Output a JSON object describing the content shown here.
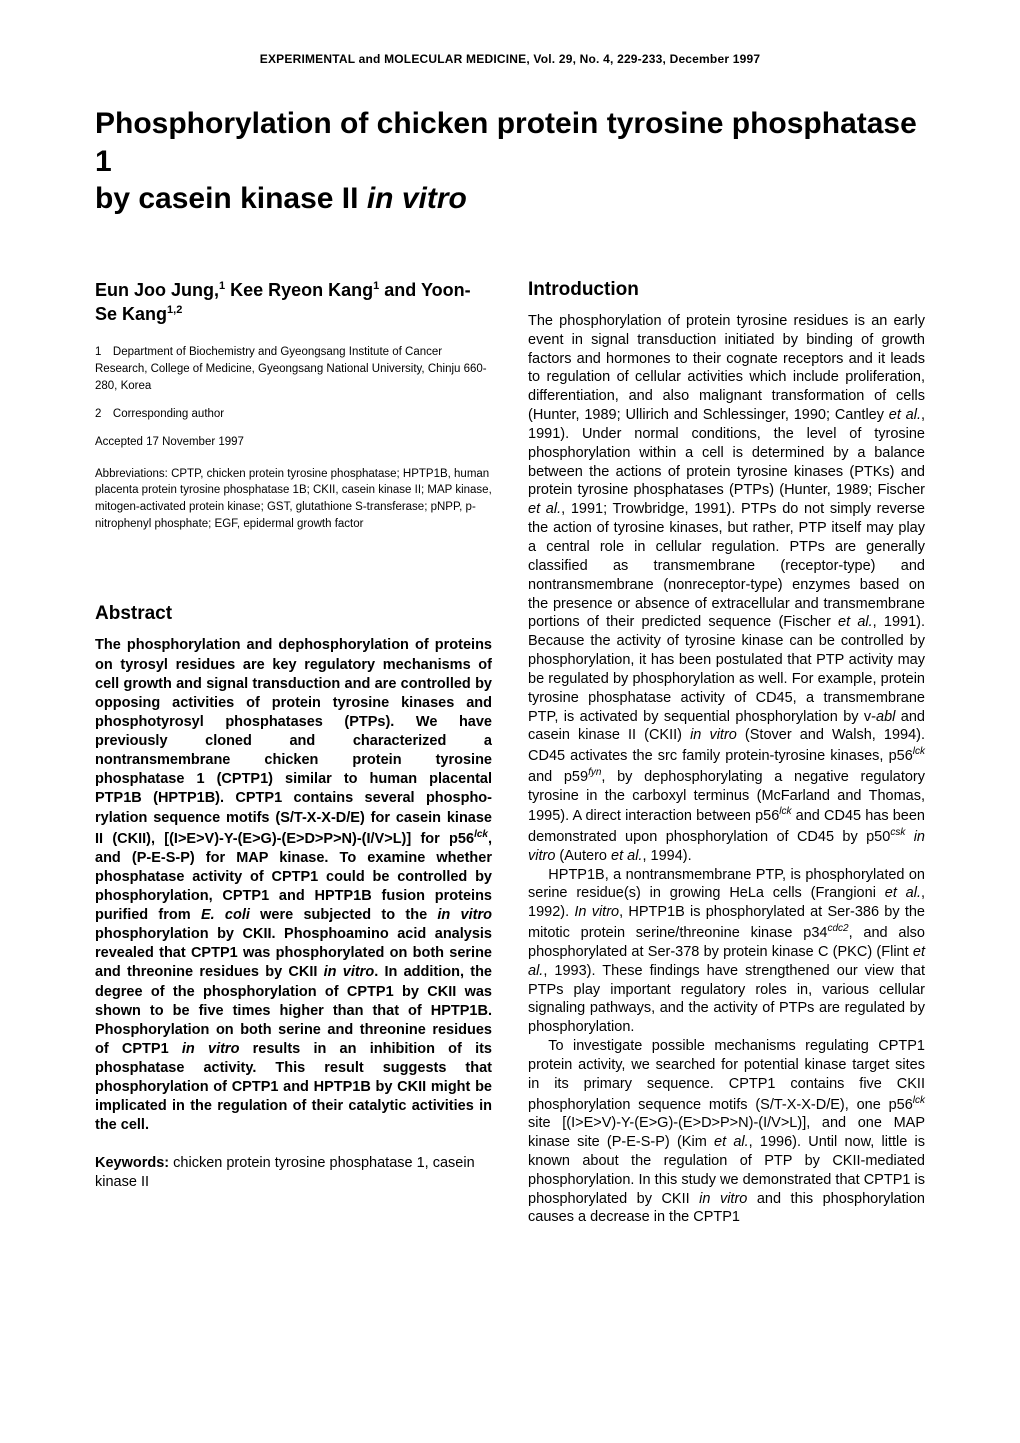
{
  "running_head": "EXPERIMENTAL and MOLECULAR MEDICINE, Vol. 29, No. 4, 229-233, December 1997",
  "title_line1": "Phosphorylation of chicken protein tyrosine phosphatase 1",
  "title_line2": "by casein kinase II ",
  "title_italic": "in vitro",
  "authors_html": "Eun Joo Jung,<sup>1</sup> Kee Ryeon Kang<sup>1</sup> and Yoon-Se Kang<sup>1,2</sup>",
  "affil_1": "1 Department of Biochemistry and Gyeongsang Institute of Cancer Research, College of Medicine, Gyeongsang National University, Chinju 660-280, Korea",
  "affil_2": "2 Corresponding author",
  "accepted": "Accepted 17 November 1997",
  "abbrev_label": "Abbreviations:",
  "abbrev_text": " CPTP, chicken protein tyrosine phosphatase; HPTP1B, human placenta protein tyrosine phosphatase 1B; CKII, casein kinase II; MAP kinase, mitogen-activated protein kinase; GST, glutathione S-transferase; pNPP, p-nitrophenyl phosphate; EGF, epidermal growth factor",
  "abstract_head": "Abstract",
  "abstract_body_html": "The phosphorylation and dephosphorylation of proteins on tyrosyl residues are key regulatory mechanisms of cell growth and signal transduction and are controlled by opposing activities of protein tyrosine kinases and phosphotyrosyl phosphatases (PTPs). We have previously cloned and characterized a nontransmembrane chicken protein tyrosine phosphatase 1 (CPTP1) similar to human placental PTP1B (HPTP1B). CPTP1 contains several phospho­rylation sequence motifs (S/T-X-X-D/E) for casein kinase II (CKII), [(I>E>V)-Y-(E>G)-(E>D>P>N)-(I/V>L)] for p56<sup>lck</sup>, and (P-E-S-P) for MAP kinase. To examine whether phosphatase activity of CPTP1 could be controlled by phosphorylation, CPTP1 and HPTP1B fusion proteins purified from <em>E. coli</em> were subjected to the <em>in vitro</em> phosphorylation by CKII. Phosphoamino acid analysis revealed that CPTP1 was phosphorylated on both serine and threonine residues by CKII <em>in vitro</em>. In addition, the degree of the phosphorylation of CPTP1 by CKII was shown to be five times higher than that of HPTP1B. Phosphorylation on both serine and threonine residues of CPTP1 <em>in vitro</em> results in an inhibition of its phosphatase activity. This result suggests that phosphorylation of CPTP1 and HPTP1B by CKII might be implicated in the regulation of their catalytic activities in the cell.",
  "keywords_label": "Keywords:",
  "keywords_text": " chicken protein tyrosine phosphatase 1, casein kinase II",
  "intro_head": "Introduction",
  "intro_p1_html": "The phosphorylation of protein tyrosine residues is an early event in signal transduction initiated by binding of growth factors and hormones to their cognate receptors and it leads to regulation of cellular activities which include proliferation, differentiation, and also malignant transfor­mation of cells (Hunter, 1989; Ullirich and Schlessinger, 1990; Cantley <em>et al.</em>, 1991). Under normal conditions, the level of tyrosine phosphorylation within a cell is determined by a balance between the actions of protein tyrosine kinases (PTKs) and protein tyrosine phosphatases (PTPs) (Hunter, 1989; Fischer <em>et al.</em>, 1991; Trowbridge, 1991). PTPs do not simply reverse the action of tyrosine kinases, but rather, PTP itself may play a central role in cellular regulation. PTPs are generally classified as transmem­brane (receptor-type) and nontransmembrane (nonrecep­tor-type) enzymes based on the presence or absence of extracellular and transmembrane portions of their predicted sequence (Fischer <em>et al.</em>, 1991). Because the activity of tyrosine kinase can be controlled by phosphorylation, it has been postulated that PTP activity may be regulated by phosphorylation as well. For example, protein tyrosine phosphatase activity of CD45, a transmembrane PTP, is activated by sequential phosphorylation by v-<em>abl</em> and casein kinase II (CKII) <em>in vitro</em> (Stover and Walsh, 1994). CD45 activates the src family protein-tyrosine kinases, p56<sup>lck</sup> and p59<sup>fyn</sup>, by dephosphorylating a negative regulatory tyrosine in the carboxyl terminus (McFarland and Thomas, 1995). A direct interaction between p56<sup>lck</sup> and CD45 has been demonstrated upon phosphorylation of CD45 by p50<sup>csk</sup> <em>in vitro</em> (Autero <em>et al.</em>, 1994).",
  "intro_p2_html": "HPTP1B, a nontransmembrane PTP, is phosphorylated on serine residue(s) in growing HeLa cells (Frangioni <em>et al.</em>, 1992). <em>In vitro</em>, HPTP1B is phosphorylated at Ser-386 by the mitotic protein serine/threonine kinase p34<sup>cdc2</sup>, and also phosphorylated at Ser-378 by protein kinase C (PKC) (Flint <em>et al.</em>, 1993). These findings have strengthened our view that PTPs play important regulatory roles in, various cellular signaling pathways, and the activity of PTPs are regulated by phosphorylation.",
  "intro_p3_html": "To investigate possible mechanisms regulating CPTP1 protein activity, we searched for potential kinase target sites in its primary sequence. CPTP1 contains five CKII phosphorylation sequence motifs (S/T-X-X-D/E), one p56<sup>lck</sup> site [(I>E>V)-Y-(E>G)-(E>D>P>N)-(I/V>L)], and one MAP kinase site (P-E-S-P) (Kim <em>et al.</em>, 1996). Until now, little is known about the regulation of PTP by CKII-mediated phosphorylation. In this study we demonstrated that CPTP1 is phosphorylated by CKII <em>in vitro</em> and this phosphorylation causes a decrease in the CPTP1"
}
